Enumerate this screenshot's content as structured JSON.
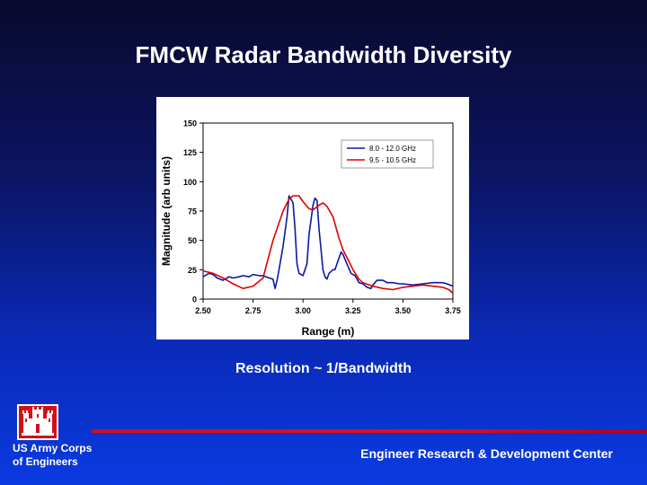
{
  "slide": {
    "title": "FMCW Radar Bandwidth Diversity",
    "subtitle": "Resolution ~ 1/Bandwidth",
    "org_line1": "US Army Corps",
    "org_line2": "of Engineers",
    "center_name": "Engineer Research & Development Center",
    "logo_icon": "castle-icon",
    "colors": {
      "accent_red": "#d0101a",
      "text": "#ffffff"
    }
  },
  "chart_data": {
    "type": "line",
    "xlabel": "Range (m)",
    "ylabel": "Magnitude (arb units)",
    "xlim": [
      2.5,
      3.75
    ],
    "ylim": [
      0,
      150
    ],
    "x_ticks": [
      "2.50",
      "2.75",
      "3.00",
      "3.25",
      "3.50",
      "3.75"
    ],
    "y_ticks": [
      "0",
      "25",
      "50",
      "75",
      "100",
      "125",
      "150"
    ],
    "legend_position": "top-right",
    "series": [
      {
        "name": "8.0 - 12.0 GHz",
        "color": "#0a1aa0",
        "x": [
          2.5,
          2.53,
          2.55,
          2.57,
          2.6,
          2.63,
          2.65,
          2.68,
          2.7,
          2.73,
          2.75,
          2.78,
          2.8,
          2.83,
          2.85,
          2.86,
          2.87,
          2.88,
          2.9,
          2.92,
          2.93,
          2.95,
          2.96,
          2.97,
          2.98,
          3.0,
          3.02,
          3.03,
          3.05,
          3.06,
          3.07,
          3.08,
          3.1,
          3.11,
          3.12,
          3.13,
          3.15,
          3.16,
          3.17,
          3.19,
          3.2,
          3.22,
          3.24,
          3.26,
          3.28,
          3.3,
          3.32,
          3.34,
          3.35,
          3.37,
          3.4,
          3.42,
          3.45,
          3.48,
          3.5,
          3.55,
          3.6,
          3.65,
          3.7,
          3.72,
          3.75
        ],
        "values": [
          19,
          22,
          21,
          18,
          16,
          19,
          18,
          19,
          20,
          19,
          21,
          20,
          20,
          18,
          17,
          9,
          16,
          25,
          45,
          70,
          88,
          82,
          60,
          30,
          22,
          20,
          30,
          55,
          80,
          86,
          84,
          60,
          25,
          19,
          17,
          22,
          25,
          25,
          30,
          40,
          38,
          30,
          22,
          20,
          14,
          13,
          10,
          9,
          12,
          16,
          16,
          14,
          14,
          13,
          13,
          12,
          13,
          14,
          14,
          13,
          11
        ]
      },
      {
        "name": "9.5 - 10.5 GHz",
        "color": "#e00000",
        "x": [
          2.5,
          2.55,
          2.6,
          2.65,
          2.7,
          2.75,
          2.8,
          2.85,
          2.9,
          2.93,
          2.95,
          2.98,
          3.0,
          3.03,
          3.05,
          3.08,
          3.1,
          3.12,
          3.15,
          3.18,
          3.2,
          3.23,
          3.25,
          3.28,
          3.3,
          3.35,
          3.4,
          3.45,
          3.5,
          3.55,
          3.6,
          3.65,
          3.7,
          3.73,
          3.75
        ],
        "values": [
          24,
          22,
          18,
          13,
          9,
          11,
          18,
          50,
          75,
          85,
          88,
          88,
          83,
          77,
          76,
          80,
          82,
          79,
          70,
          52,
          42,
          32,
          25,
          17,
          14,
          11,
          9,
          8,
          10,
          11,
          12,
          11,
          10,
          8,
          5
        ]
      }
    ]
  }
}
